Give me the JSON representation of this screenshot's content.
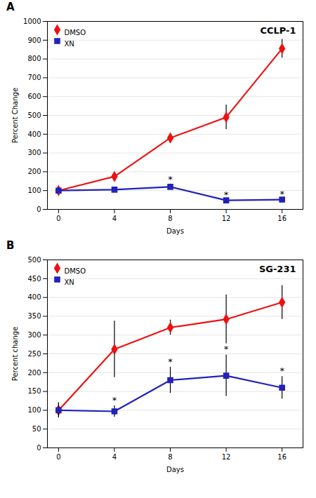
{
  "chart_data": [
    {
      "type": "line",
      "panel_label": "A",
      "title": "CCLP-1",
      "xlabel": "Days",
      "ylabel": "Percent Change",
      "x": [
        0,
        4,
        8,
        12,
        16
      ],
      "series": [
        {
          "name": "DMSO",
          "color": "#EE1111",
          "marker": "diamond",
          "values": [
            100,
            175,
            380,
            490,
            855
          ],
          "errors": [
            0,
            0,
            20,
            65,
            50
          ]
        },
        {
          "name": "XN",
          "color": "#2222BB",
          "marker": "square",
          "values": [
            100,
            105,
            120,
            48,
            52
          ],
          "errors": [
            0,
            10,
            15,
            8,
            8
          ]
        }
      ],
      "annotations": [
        {
          "x": 8,
          "y": 142,
          "text": "*"
        },
        {
          "x": 12,
          "y": 63,
          "text": "*"
        },
        {
          "x": 16,
          "y": 67,
          "text": "*"
        }
      ],
      "xlim": [
        -0.8,
        17.5
      ],
      "xticks": [
        0,
        4,
        8,
        12,
        16
      ],
      "ylim": [
        0,
        1000
      ],
      "yticks": [
        0,
        100,
        200,
        300,
        400,
        500,
        600,
        700,
        800,
        900,
        1000
      ],
      "grid": "y",
      "legend": "upper left"
    },
    {
      "type": "line",
      "panel_label": "B",
      "title": "SG-231",
      "xlabel": "Days",
      "ylabel": "Percent change",
      "x": [
        0,
        4,
        8,
        12,
        16
      ],
      "series": [
        {
          "name": "DMSO",
          "color": "#EE1111",
          "marker": "diamond",
          "values": [
            100,
            262,
            320,
            342,
            387
          ],
          "errors": [
            20,
            75,
            20,
            65,
            45
          ]
        },
        {
          "name": "XN",
          "color": "#2222BB",
          "marker": "square",
          "values": [
            100,
            97,
            180,
            192,
            160
          ],
          "errors": [
            20,
            15,
            35,
            55,
            30
          ]
        }
      ],
      "annotations": [
        {
          "x": 4,
          "y": 118,
          "text": "*"
        },
        {
          "x": 8,
          "y": 222,
          "text": "*"
        },
        {
          "x": 12,
          "y": 255,
          "text": "*"
        },
        {
          "x": 16,
          "y": 197,
          "text": "*"
        }
      ],
      "xlim": [
        -0.8,
        17.5
      ],
      "xticks": [
        0,
        4,
        8,
        12,
        16
      ],
      "ylim": [
        0,
        500
      ],
      "yticks": [
        0,
        50,
        100,
        150,
        200,
        250,
        300,
        350,
        400,
        450,
        500
      ],
      "grid": "y",
      "legend": "upper left"
    }
  ]
}
